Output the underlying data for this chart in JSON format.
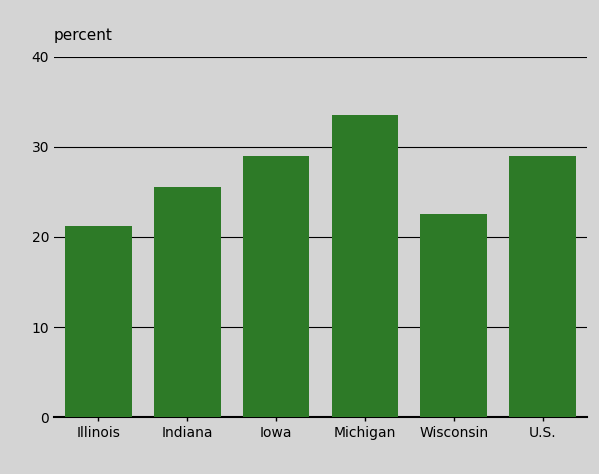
{
  "categories": [
    "Illinois",
    "Indiana",
    "Iowa",
    "Michigan",
    "Wisconsin",
    "U.S."
  ],
  "values": [
    21.2,
    25.5,
    29.0,
    33.5,
    22.5,
    29.0
  ],
  "bar_color": "#2d7a27",
  "ylabel": "percent",
  "ylim": [
    0,
    40
  ],
  "yticks": [
    0,
    10,
    20,
    30,
    40
  ],
  "background_color": "#d4d4d4",
  "ylabel_fontsize": 11,
  "tick_fontsize": 10,
  "bar_width": 0.75,
  "figsize": [
    5.99,
    4.74
  ],
  "dpi": 100
}
